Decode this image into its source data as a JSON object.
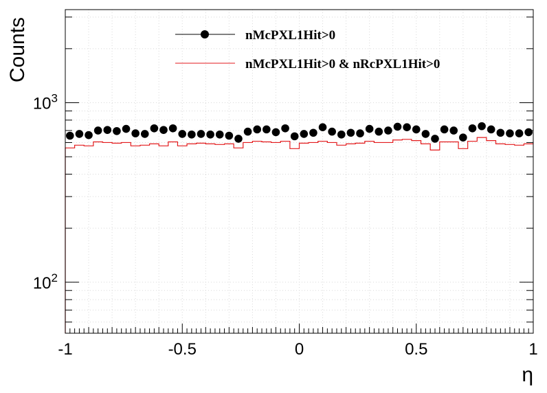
{
  "chart_data": {
    "type": "scatter",
    "xlabel": "η",
    "ylabel": "Counts",
    "xlim": [
      -1,
      1
    ],
    "ylim": [
      52,
      3300
    ],
    "yscale": "log",
    "grid": true,
    "legend_position": "top-center",
    "x_ticks": [
      -1,
      -0.5,
      0,
      0.5,
      1
    ],
    "x_tick_labels": [
      "-1",
      "-0.5",
      "0",
      "0.5",
      "1"
    ],
    "y_ticks": [
      {
        "value": 100,
        "base": "10",
        "exp": "2"
      },
      {
        "value": 1000,
        "base": "10",
        "exp": "3"
      }
    ],
    "series": [
      {
        "name": "nMcPXL1Hit>0",
        "style": "markers",
        "color": "#000000",
        "bin_edges_start": -1,
        "bin_width": 0.04,
        "values": [
          655,
          670,
          660,
          700,
          705,
          695,
          715,
          675,
          670,
          720,
          705,
          720,
          670,
          665,
          670,
          665,
          665,
          655,
          630,
          690,
          710,
          710,
          685,
          720,
          650,
          670,
          680,
          730,
          690,
          665,
          680,
          675,
          715,
          690,
          700,
          735,
          730,
          710,
          670,
          630,
          710,
          700,
          640,
          720,
          740,
          710,
          680,
          675,
          675,
          685
        ]
      },
      {
        "name": "nMcPXL1Hit>0 & nRcPXL1Hit>0",
        "style": "step",
        "color": "#e31a1c",
        "bin_edges_start": -1,
        "bin_width": 0.04,
        "values": [
          560,
          580,
          575,
          605,
          600,
          595,
          600,
          575,
          580,
          590,
          575,
          605,
          575,
          590,
          595,
          590,
          585,
          590,
          560,
          600,
          610,
          605,
          600,
          610,
          555,
          595,
          600,
          610,
          600,
          580,
          590,
          595,
          610,
          600,
          600,
          620,
          625,
          615,
          590,
          545,
          605,
          605,
          555,
          610,
          640,
          615,
          590,
          585,
          580,
          590
        ]
      }
    ]
  }
}
